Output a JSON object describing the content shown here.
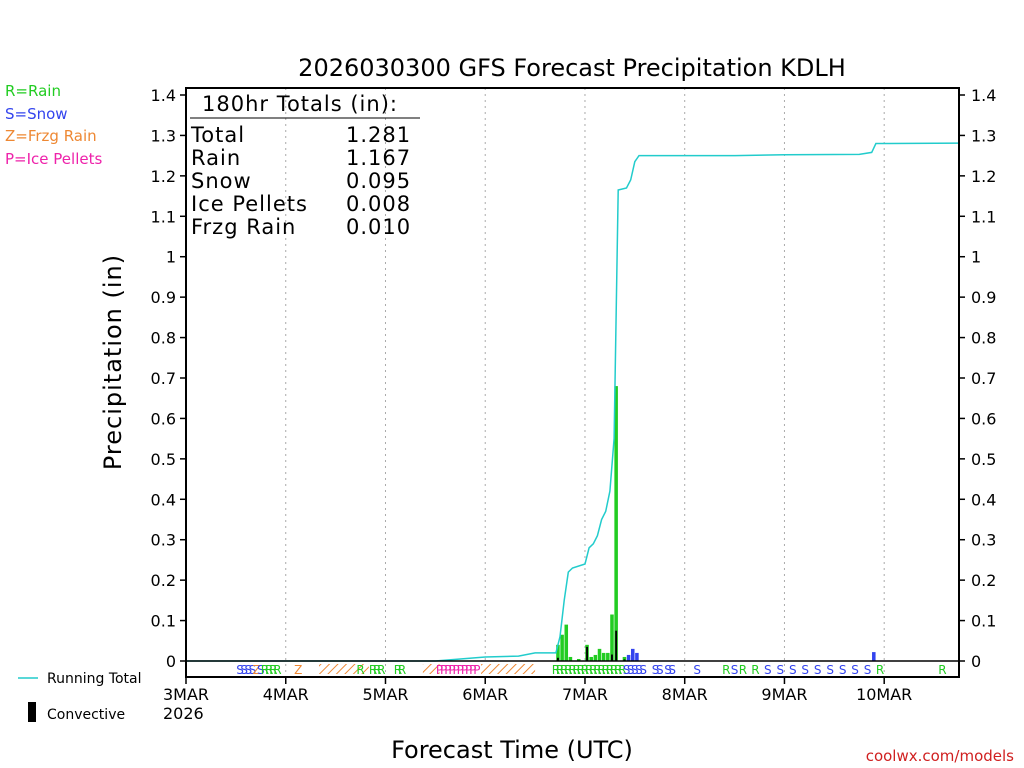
{
  "chart_data": {
    "type": "bar+line",
    "title": "2026030300 GFS Forecast Precipitation KDLH",
    "ylabel": "Precipitation (in)",
    "xlabel": "Forecast Time (UTC)",
    "ylim": [
      0,
      1.4
    ],
    "xlim_hours": [
      0,
      186
    ],
    "y_ticks": [
      0,
      0.1,
      0.2,
      0.3,
      0.4,
      0.5,
      0.6,
      0.7,
      0.8,
      0.9,
      1,
      1.1,
      1.2,
      1.3,
      1.4
    ],
    "y_tick_labels": [
      "0",
      "0.1",
      "0.2",
      "0.3",
      "0.4",
      "0.5",
      "0.6",
      "0.7",
      "0.8",
      "0.9",
      "1",
      "1.1",
      "1.2",
      "1.3",
      "1.4"
    ],
    "x_ticks": [
      {
        "hour": 0,
        "label": "3MAR",
        "sublabel": "2026"
      },
      {
        "hour": 24,
        "label": "4MAR"
      },
      {
        "hour": 48,
        "label": "5MAR"
      },
      {
        "hour": 72,
        "label": "6MAR"
      },
      {
        "hour": 96,
        "label": "7MAR"
      },
      {
        "hour": 120,
        "label": "8MAR"
      },
      {
        "hour": 144,
        "label": "9MAR"
      },
      {
        "hour": 168,
        "label": "10MAR"
      }
    ],
    "precip_type_legend": [
      {
        "label": "R=Rain",
        "color": "#22cc22"
      },
      {
        "label": "S=Snow",
        "color": "#3344ee"
      },
      {
        "label": "Z=Frzg Rain",
        "color": "#ee8833"
      },
      {
        "label": "P=Ice Pellets",
        "color": "#ee22aa"
      }
    ],
    "totals": {
      "heading": "180hr Totals (in):",
      "rows": [
        {
          "label": "Total",
          "value": "1.281"
        },
        {
          "label": "Rain",
          "value": "1.167"
        },
        {
          "label": "Snow",
          "value": "0.095"
        },
        {
          "label": "Ice Pellets",
          "value": "0.008"
        },
        {
          "label": "Frzg Rain",
          "value": "0.010"
        }
      ]
    },
    "series_legend": {
      "running_total": "Running Total",
      "convective": "Convective"
    },
    "running_total": [
      [
        0,
        0
      ],
      [
        60,
        0
      ],
      [
        66,
        0.005
      ],
      [
        72,
        0.01
      ],
      [
        80,
        0.012
      ],
      [
        84,
        0.02
      ],
      [
        89,
        0.02
      ],
      [
        90,
        0.06
      ],
      [
        91,
        0.15
      ],
      [
        92,
        0.22
      ],
      [
        93,
        0.23
      ],
      [
        96,
        0.24
      ],
      [
        97,
        0.28
      ],
      [
        98,
        0.29
      ],
      [
        99,
        0.31
      ],
      [
        100,
        0.35
      ],
      [
        101,
        0.37
      ],
      [
        102,
        0.42
      ],
      [
        103,
        0.55
      ],
      [
        104,
        1.165
      ],
      [
        106,
        1.17
      ],
      [
        107,
        1.19
      ],
      [
        108,
        1.235
      ],
      [
        109,
        1.25
      ],
      [
        120,
        1.25
      ],
      [
        132,
        1.25
      ],
      [
        144,
        1.252
      ],
      [
        162,
        1.253
      ],
      [
        165,
        1.258
      ],
      [
        166,
        1.28
      ],
      [
        168,
        1.28
      ],
      [
        186,
        1.281
      ]
    ],
    "bars": [
      {
        "h": 89.5,
        "v": 0.04,
        "type": "rain"
      },
      {
        "h": 90.5,
        "v": 0.065,
        "type": "rain"
      },
      {
        "h": 91.5,
        "v": 0.09,
        "type": "rain"
      },
      {
        "h": 92.5,
        "v": 0.01,
        "type": "rain"
      },
      {
        "h": 94.5,
        "v": 0.005,
        "type": "rain"
      },
      {
        "h": 96.5,
        "v": 0.04,
        "type": "rain"
      },
      {
        "h": 97.5,
        "v": 0.01,
        "type": "rain"
      },
      {
        "h": 98.5,
        "v": 0.015,
        "type": "rain"
      },
      {
        "h": 99.5,
        "v": 0.03,
        "type": "rain"
      },
      {
        "h": 100.5,
        "v": 0.02,
        "type": "rain"
      },
      {
        "h": 101.5,
        "v": 0.02,
        "type": "rain"
      },
      {
        "h": 102.5,
        "v": 0.115,
        "type": "rain"
      },
      {
        "h": 103.5,
        "v": 0.68,
        "type": "rain"
      },
      {
        "h": 105.5,
        "v": 0.01,
        "type": "rain"
      },
      {
        "h": 106.5,
        "v": 0.015,
        "type": "snow"
      },
      {
        "h": 107.5,
        "v": 0.03,
        "type": "snow"
      },
      {
        "h": 108.5,
        "v": 0.02,
        "type": "snow"
      },
      {
        "h": 165.5,
        "v": 0.022,
        "type": "snow"
      }
    ],
    "convective_bars": [
      {
        "h": 89.5,
        "v": 0.008
      },
      {
        "h": 96.5,
        "v": 0.035
      },
      {
        "h": 102.5,
        "v": 0.016
      },
      {
        "h": 103.5,
        "v": 0.075
      },
      {
        "h": 105.5,
        "v": 0.004
      }
    ],
    "type_strip": [
      {
        "h": 13,
        "t": "S"
      },
      {
        "h": 14,
        "t": "S"
      },
      {
        "h": 15,
        "t": "S"
      },
      {
        "h": 16,
        "t": "S"
      },
      {
        "h": 17,
        "t": "Z"
      },
      {
        "h": 18,
        "t": "S"
      },
      {
        "h": 19,
        "t": "R"
      },
      {
        "h": 20,
        "t": "R"
      },
      {
        "h": 21,
        "t": "R"
      },
      {
        "h": 22,
        "t": "R"
      },
      {
        "h": 27,
        "t": "Z"
      },
      {
        "h": 42,
        "t": "R"
      },
      {
        "h": 45,
        "t": "R"
      },
      {
        "h": 46,
        "t": "R"
      },
      {
        "h": 47,
        "t": "R"
      },
      {
        "h": 51,
        "t": "R"
      },
      {
        "h": 52,
        "t": "R"
      },
      {
        "h": 61,
        "t": "P"
      },
      {
        "h": 62,
        "t": "P"
      },
      {
        "h": 63,
        "t": "P"
      },
      {
        "h": 64,
        "t": "P"
      },
      {
        "h": 65,
        "t": "P"
      },
      {
        "h": 66,
        "t": "P"
      },
      {
        "h": 67,
        "t": "P"
      },
      {
        "h": 68,
        "t": "P"
      },
      {
        "h": 69,
        "t": "P"
      },
      {
        "h": 70,
        "t": "P"
      },
      {
        "h": 89,
        "t": "R"
      },
      {
        "h": 90,
        "t": "R"
      },
      {
        "h": 91,
        "t": "R"
      },
      {
        "h": 92,
        "t": "R"
      },
      {
        "h": 93,
        "t": "R"
      },
      {
        "h": 94,
        "t": "R"
      },
      {
        "h": 95,
        "t": "R"
      },
      {
        "h": 96,
        "t": "R"
      },
      {
        "h": 97,
        "t": "R"
      },
      {
        "h": 98,
        "t": "R"
      },
      {
        "h": 99,
        "t": "R"
      },
      {
        "h": 100,
        "t": "R"
      },
      {
        "h": 101,
        "t": "R"
      },
      {
        "h": 102,
        "t": "R"
      },
      {
        "h": 103,
        "t": "R"
      },
      {
        "h": 104,
        "t": "R"
      },
      {
        "h": 105,
        "t": "R"
      },
      {
        "h": 106,
        "t": "S"
      },
      {
        "h": 107,
        "t": "S"
      },
      {
        "h": 108,
        "t": "S"
      },
      {
        "h": 109,
        "t": "S"
      },
      {
        "h": 110,
        "t": "S"
      },
      {
        "h": 113,
        "t": "S"
      },
      {
        "h": 114,
        "t": "S"
      },
      {
        "h": 116,
        "t": "S"
      },
      {
        "h": 117,
        "t": "S"
      },
      {
        "h": 123,
        "t": "S"
      },
      {
        "h": 130,
        "t": "R"
      },
      {
        "h": 132,
        "t": "S"
      },
      {
        "h": 134,
        "t": "R"
      },
      {
        "h": 137,
        "t": "R"
      },
      {
        "h": 140,
        "t": "S"
      },
      {
        "h": 143,
        "t": "S"
      },
      {
        "h": 146,
        "t": "S"
      },
      {
        "h": 149,
        "t": "S"
      },
      {
        "h": 152,
        "t": "S"
      },
      {
        "h": 155,
        "t": "S"
      },
      {
        "h": 158,
        "t": "S"
      },
      {
        "h": 161,
        "t": "S"
      },
      {
        "h": 164,
        "t": "S"
      },
      {
        "h": 167,
        "t": "R"
      },
      {
        "h": 182,
        "t": "R"
      }
    ],
    "hatch_zones": [
      [
        32,
        44
      ],
      [
        57,
        61
      ],
      [
        71,
        84
      ]
    ],
    "watermark": "coolwx.com/models"
  },
  "colors": {
    "rain": "#22cc22",
    "snow": "#3344ee",
    "frzg": "#ee8833",
    "ice": "#ee22aa",
    "line": "#22cccc",
    "watermark": "#d02020",
    "grid": "#aaaaaa"
  }
}
